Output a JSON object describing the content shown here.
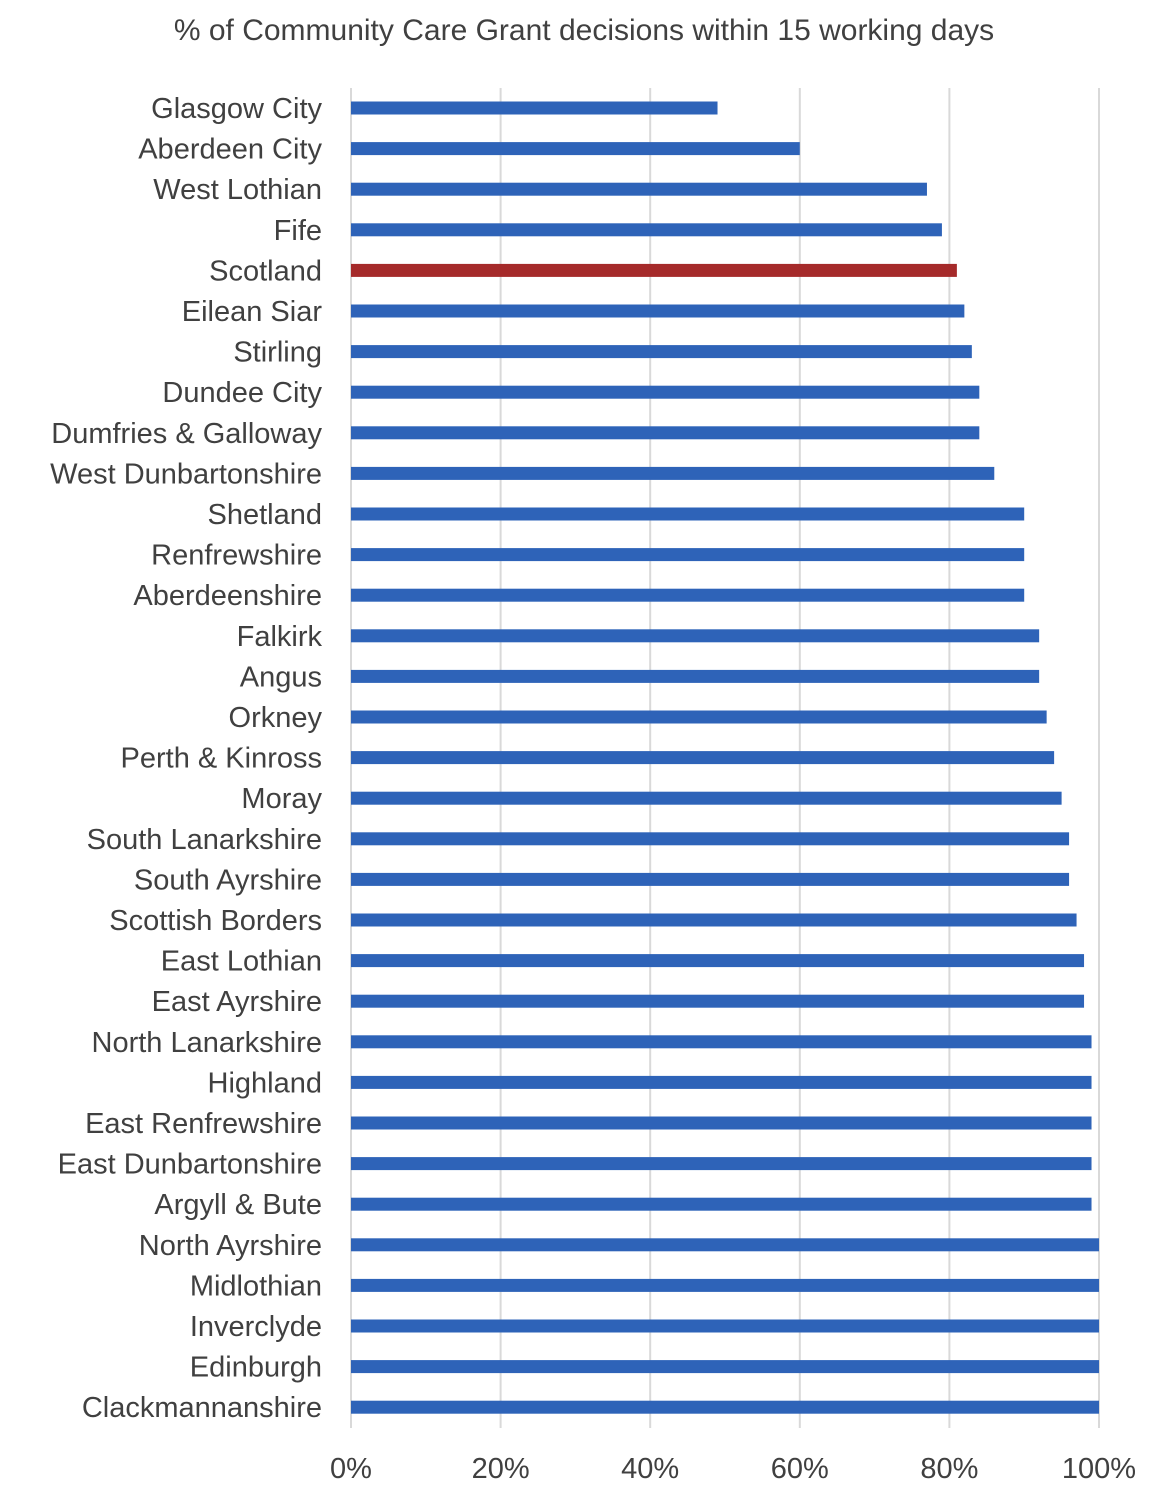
{
  "chart_data": {
    "type": "bar",
    "orientation": "horizontal",
    "title": "% of Community Care Grant decisions within 15 working days",
    "xlabel": "",
    "ylabel": "",
    "xlim": [
      0,
      1
    ],
    "x_ticks": [
      "0%",
      "20%",
      "40%",
      "60%",
      "80%",
      "100%"
    ],
    "grid": "vertical",
    "legend": "none",
    "colors": {
      "default": "#2E63B8",
      "highlight": "#A52A2A",
      "grid": "#D9D9D9",
      "text": "#404040"
    },
    "categories": [
      "Glasgow City",
      "Aberdeen City",
      "West Lothian",
      "Fife",
      "Scotland",
      "Eilean Siar",
      "Stirling",
      "Dundee City",
      "Dumfries & Galloway",
      "West Dunbartonshire",
      "Shetland",
      "Renfrewshire",
      "Aberdeenshire",
      "Falkirk",
      "Angus",
      "Orkney",
      "Perth & Kinross",
      "Moray",
      "South Lanarkshire",
      "South Ayrshire",
      "Scottish Borders",
      "East Lothian",
      "East Ayrshire",
      "North Lanarkshire",
      "Highland",
      "East Renfrewshire",
      "East Dunbartonshire",
      "Argyll & Bute",
      "North Ayrshire",
      "Midlothian",
      "Inverclyde",
      "Edinburgh",
      "Clackmannanshire"
    ],
    "values": [
      0.49,
      0.6,
      0.77,
      0.79,
      0.81,
      0.82,
      0.83,
      0.84,
      0.84,
      0.86,
      0.9,
      0.9,
      0.9,
      0.92,
      0.92,
      0.93,
      0.94,
      0.95,
      0.96,
      0.96,
      0.97,
      0.98,
      0.98,
      0.99,
      0.99,
      0.99,
      0.99,
      0.99,
      1.0,
      1.0,
      1.0,
      1.0,
      1.0
    ],
    "highlight_category": "Scotland"
  }
}
